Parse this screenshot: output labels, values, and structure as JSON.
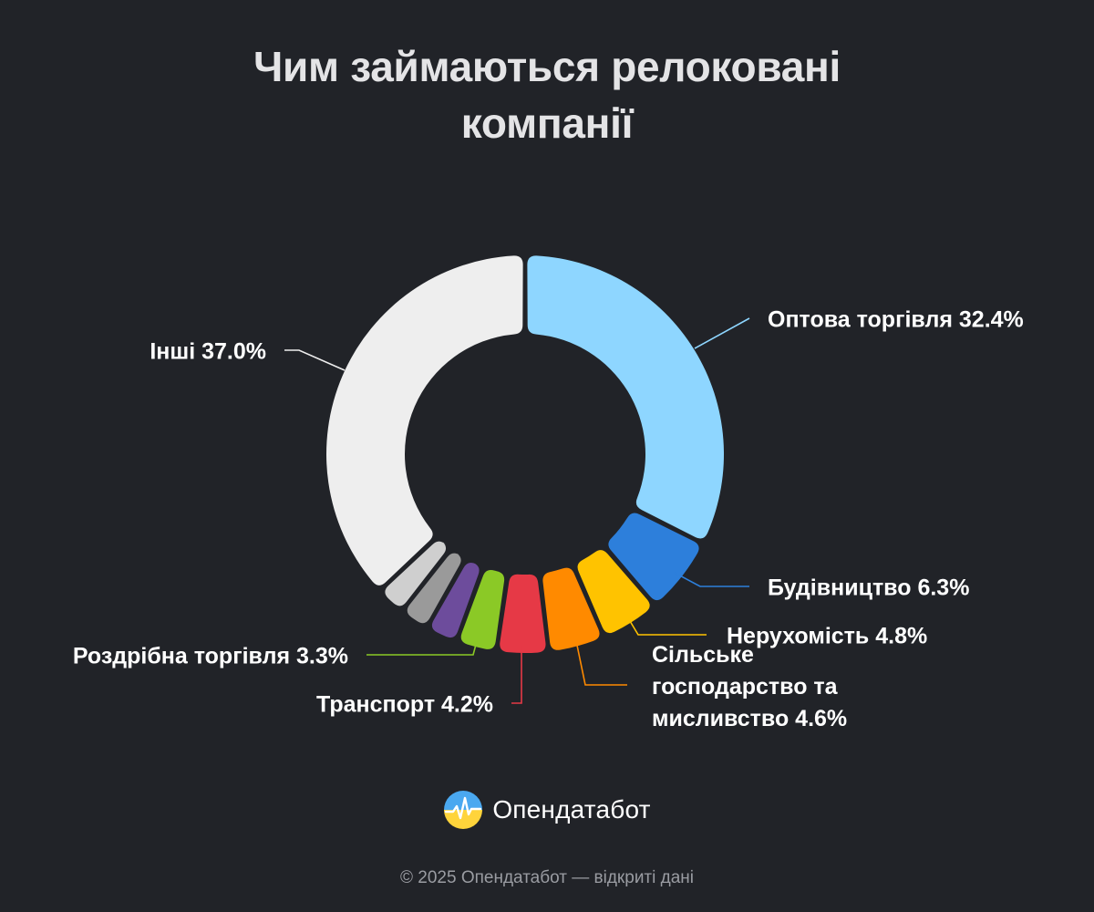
{
  "title": {
    "line1": "Чим займаються релоковані",
    "line2": "компанії"
  },
  "chart_data": {
    "type": "pie",
    "variant": "donut",
    "legend": "none",
    "unit": "%",
    "slices": [
      {
        "name": "Оптова торгівля",
        "value": 32.4,
        "color": "#8ed6ff",
        "label": "Оптова торгівля 32.4%"
      },
      {
        "name": "Будівництво",
        "value": 6.3,
        "color": "#2d7fdb",
        "label": "Будівництво 6.3%"
      },
      {
        "name": "Нерухомість",
        "value": 4.8,
        "color": "#ffc300",
        "label": "Нерухомість 4.8%"
      },
      {
        "name": "Сільське господарство та мисливство",
        "value": 4.6,
        "color": "#ff8a00",
        "label_lines": [
          "Сільське",
          "господарство та",
          "мисливство 4.6%"
        ]
      },
      {
        "name": "Транспорт",
        "value": 4.2,
        "color": "#e63946",
        "label": "Транспорт 4.2%"
      },
      {
        "name": "Роздрібна торгівля",
        "value": 3.3,
        "color": "#8bc926",
        "label": "Роздрібна торгівля 3.3%"
      },
      {
        "name": "",
        "value": 2.6,
        "color": "#6d4c9c"
      },
      {
        "name": "",
        "value": 2.4,
        "color": "#9a9a9a"
      },
      {
        "name": "",
        "value": 2.4,
        "color": "#cfcfcf"
      },
      {
        "name": "Інші",
        "value": 37.0,
        "color": "#eeeeee",
        "label": "Інші 37.0%"
      }
    ]
  },
  "brand": {
    "name": "Опендатабот",
    "logo_icon": "opendatabot-logo-icon",
    "logo_colors": [
      "#4aa8f0",
      "#ffd43b"
    ]
  },
  "footer": "© 2025 Опендатабот — відкриті дані"
}
